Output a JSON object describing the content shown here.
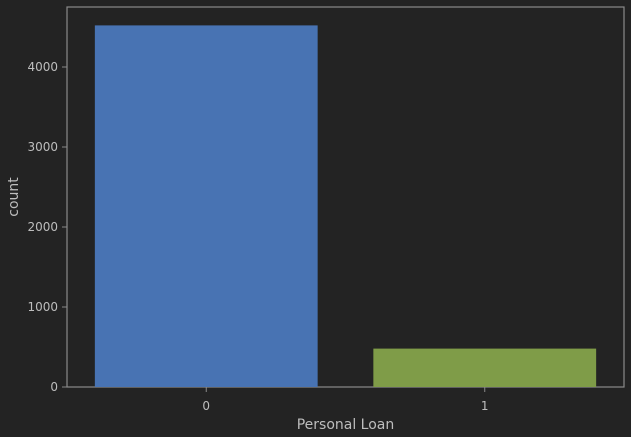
{
  "chart_data": {
    "type": "bar",
    "categories": [
      "0",
      "1"
    ],
    "values": [
      4520,
      480
    ],
    "colors": [
      "#4873b3",
      "#7f9c48"
    ],
    "xlabel": "Personal Loan",
    "ylabel": "count",
    "ylim": [
      0,
      4750
    ],
    "yticks": [
      0,
      1000,
      2000,
      3000,
      4000
    ],
    "grid": false,
    "background": "#232323",
    "axis_color": "#8a8a8a",
    "text_color": "#bdbdbd"
  }
}
